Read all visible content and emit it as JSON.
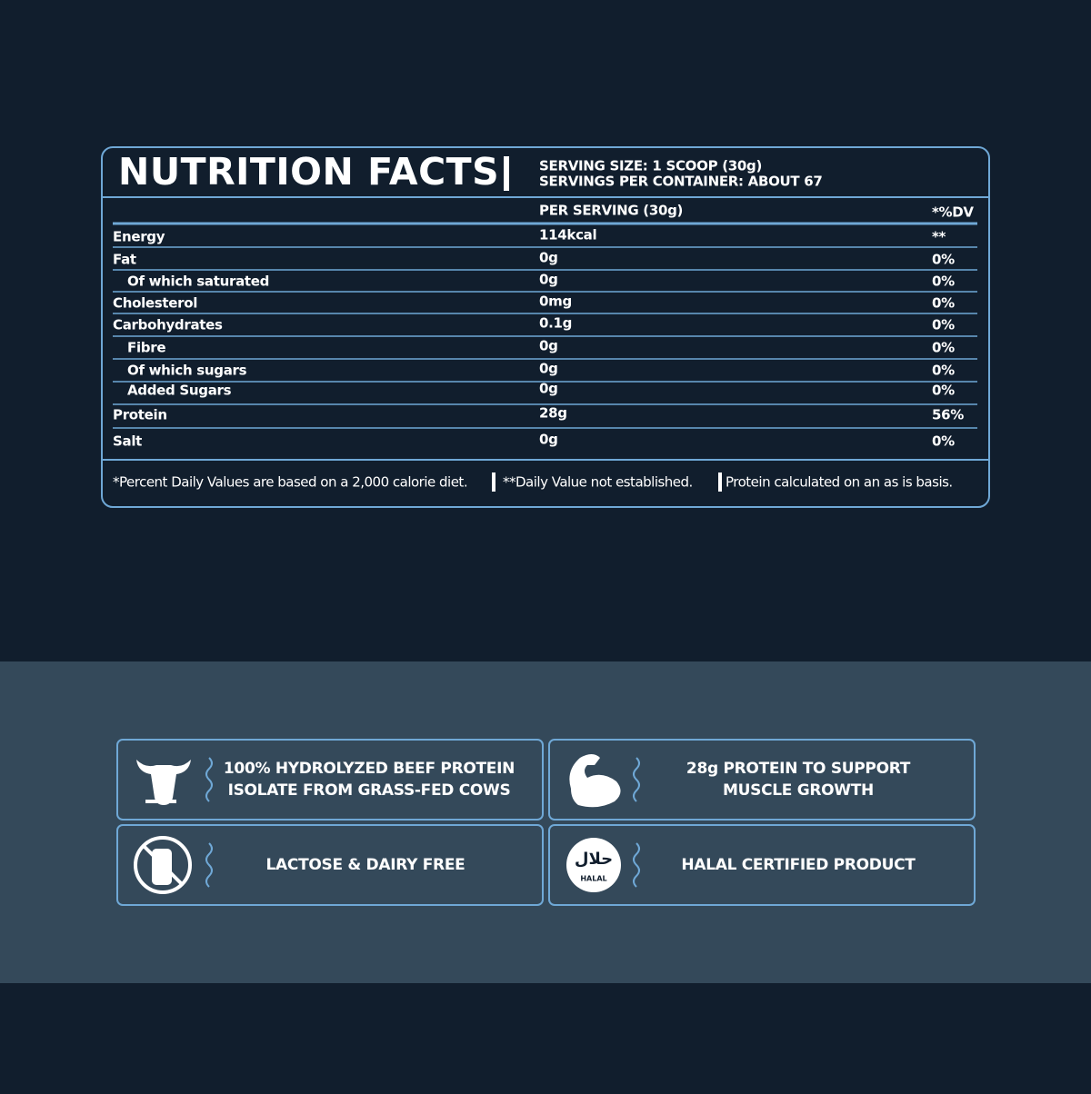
{
  "header": {
    "title": "NUTRITION FACTS",
    "serving_size": "SERVING SIZE: 1 SCOOP (30g)",
    "servings_per_container": "SERVINGS PER CONTAINER: ABOUT 67"
  },
  "table": {
    "columns": [
      "PER SERVING (30g)",
      "*%DV"
    ],
    "rows": [
      [
        "Energy",
        "114kcal",
        "**"
      ],
      [
        "Fat",
        "0g",
        "0%"
      ],
      [
        "Of which saturated",
        "0g",
        "0%"
      ],
      [
        "Cholesterol",
        "0mg",
        "0%"
      ],
      [
        "Carbohydrates",
        "0.1g",
        "0%"
      ],
      [
        "Fibre",
        "0g",
        "0%"
      ],
      [
        "Of which sugars",
        "0g",
        "0%"
      ],
      [
        "Added Sugars",
        "0g",
        "0%"
      ],
      [
        "Protein",
        "28g",
        "56%"
      ],
      [
        "Salt",
        "0g",
        "0%"
      ]
    ]
  },
  "footnotes": [
    "*Percent Daily Values are based on a 2,000 calorie diet.",
    "**Daily Value not established.",
    "Protein calculated on an as is basis."
  ],
  "features": [
    {
      "lines": [
        "100% HYDROLYZED BEEF PROTEIN",
        "ISOLATE FROM GRASS-FED COWS"
      ]
    },
    {
      "lines": [
        "28g PROTEIN TO SUPPORT",
        "MUSCLE GROWTH"
      ]
    },
    {
      "lines": [
        "LACTOSE & DAIRY FREE"
      ]
    },
    {
      "lines": [
        "HALAL CERTIFIED PRODUCT"
      ],
      "icon_text": "حلال",
      "icon_label": "HALAL"
    }
  ]
}
